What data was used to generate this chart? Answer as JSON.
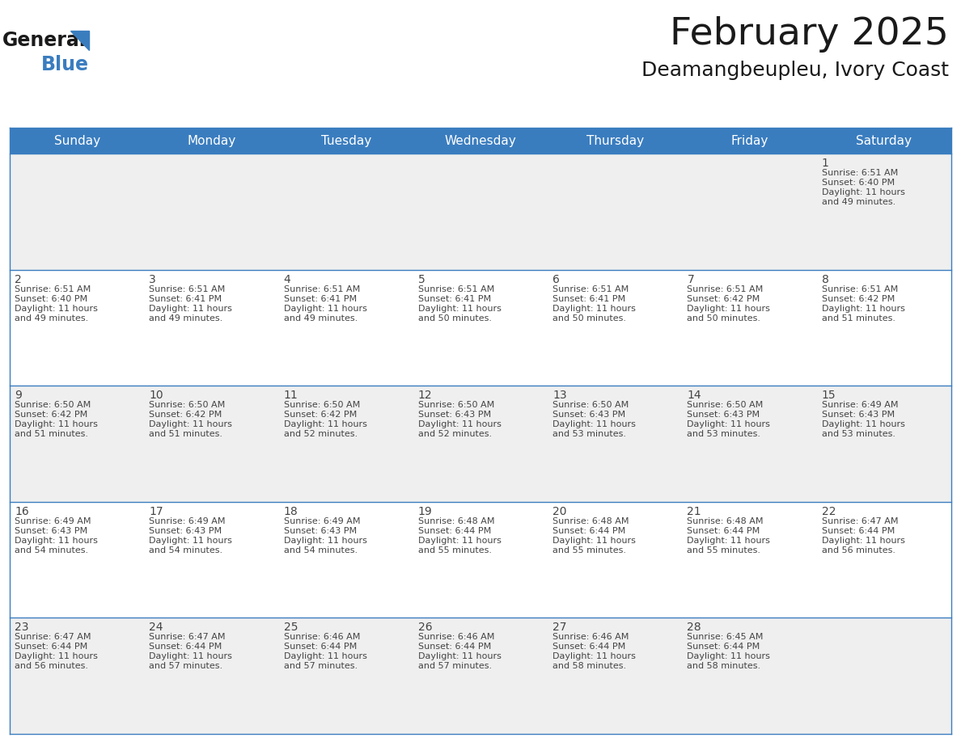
{
  "title": "February 2025",
  "subtitle": "Deamangbeupleu, Ivory Coast",
  "header_color": "#3A7DBF",
  "header_text_color": "#FFFFFF",
  "day_names": [
    "Sunday",
    "Monday",
    "Tuesday",
    "Wednesday",
    "Thursday",
    "Friday",
    "Saturday"
  ],
  "background_color": "#FFFFFF",
  "cell_bg_even": "#EFEFEF",
  "cell_bg_odd": "#FFFFFF",
  "separator_color": "#3A7DBF",
  "text_color": "#444444",
  "days": [
    {
      "day": 1,
      "col": 6,
      "row": 0,
      "sunrise": "6:51 AM",
      "sunset": "6:40 PM",
      "daylight_line1": "Daylight: 11 hours",
      "daylight_line2": "and 49 minutes."
    },
    {
      "day": 2,
      "col": 0,
      "row": 1,
      "sunrise": "6:51 AM",
      "sunset": "6:40 PM",
      "daylight_line1": "Daylight: 11 hours",
      "daylight_line2": "and 49 minutes."
    },
    {
      "day": 3,
      "col": 1,
      "row": 1,
      "sunrise": "6:51 AM",
      "sunset": "6:41 PM",
      "daylight_line1": "Daylight: 11 hours",
      "daylight_line2": "and 49 minutes."
    },
    {
      "day": 4,
      "col": 2,
      "row": 1,
      "sunrise": "6:51 AM",
      "sunset": "6:41 PM",
      "daylight_line1": "Daylight: 11 hours",
      "daylight_line2": "and 49 minutes."
    },
    {
      "day": 5,
      "col": 3,
      "row": 1,
      "sunrise": "6:51 AM",
      "sunset": "6:41 PM",
      "daylight_line1": "Daylight: 11 hours",
      "daylight_line2": "and 50 minutes."
    },
    {
      "day": 6,
      "col": 4,
      "row": 1,
      "sunrise": "6:51 AM",
      "sunset": "6:41 PM",
      "daylight_line1": "Daylight: 11 hours",
      "daylight_line2": "and 50 minutes."
    },
    {
      "day": 7,
      "col": 5,
      "row": 1,
      "sunrise": "6:51 AM",
      "sunset": "6:42 PM",
      "daylight_line1": "Daylight: 11 hours",
      "daylight_line2": "and 50 minutes."
    },
    {
      "day": 8,
      "col": 6,
      "row": 1,
      "sunrise": "6:51 AM",
      "sunset": "6:42 PM",
      "daylight_line1": "Daylight: 11 hours",
      "daylight_line2": "and 51 minutes."
    },
    {
      "day": 9,
      "col": 0,
      "row": 2,
      "sunrise": "6:50 AM",
      "sunset": "6:42 PM",
      "daylight_line1": "Daylight: 11 hours",
      "daylight_line2": "and 51 minutes."
    },
    {
      "day": 10,
      "col": 1,
      "row": 2,
      "sunrise": "6:50 AM",
      "sunset": "6:42 PM",
      "daylight_line1": "Daylight: 11 hours",
      "daylight_line2": "and 51 minutes."
    },
    {
      "day": 11,
      "col": 2,
      "row": 2,
      "sunrise": "6:50 AM",
      "sunset": "6:42 PM",
      "daylight_line1": "Daylight: 11 hours",
      "daylight_line2": "and 52 minutes."
    },
    {
      "day": 12,
      "col": 3,
      "row": 2,
      "sunrise": "6:50 AM",
      "sunset": "6:43 PM",
      "daylight_line1": "Daylight: 11 hours",
      "daylight_line2": "and 52 minutes."
    },
    {
      "day": 13,
      "col": 4,
      "row": 2,
      "sunrise": "6:50 AM",
      "sunset": "6:43 PM",
      "daylight_line1": "Daylight: 11 hours",
      "daylight_line2": "and 53 minutes."
    },
    {
      "day": 14,
      "col": 5,
      "row": 2,
      "sunrise": "6:50 AM",
      "sunset": "6:43 PM",
      "daylight_line1": "Daylight: 11 hours",
      "daylight_line2": "and 53 minutes."
    },
    {
      "day": 15,
      "col": 6,
      "row": 2,
      "sunrise": "6:49 AM",
      "sunset": "6:43 PM",
      "daylight_line1": "Daylight: 11 hours",
      "daylight_line2": "and 53 minutes."
    },
    {
      "day": 16,
      "col": 0,
      "row": 3,
      "sunrise": "6:49 AM",
      "sunset": "6:43 PM",
      "daylight_line1": "Daylight: 11 hours",
      "daylight_line2": "and 54 minutes."
    },
    {
      "day": 17,
      "col": 1,
      "row": 3,
      "sunrise": "6:49 AM",
      "sunset": "6:43 PM",
      "daylight_line1": "Daylight: 11 hours",
      "daylight_line2": "and 54 minutes."
    },
    {
      "day": 18,
      "col": 2,
      "row": 3,
      "sunrise": "6:49 AM",
      "sunset": "6:43 PM",
      "daylight_line1": "Daylight: 11 hours",
      "daylight_line2": "and 54 minutes."
    },
    {
      "day": 19,
      "col": 3,
      "row": 3,
      "sunrise": "6:48 AM",
      "sunset": "6:44 PM",
      "daylight_line1": "Daylight: 11 hours",
      "daylight_line2": "and 55 minutes."
    },
    {
      "day": 20,
      "col": 4,
      "row": 3,
      "sunrise": "6:48 AM",
      "sunset": "6:44 PM",
      "daylight_line1": "Daylight: 11 hours",
      "daylight_line2": "and 55 minutes."
    },
    {
      "day": 21,
      "col": 5,
      "row": 3,
      "sunrise": "6:48 AM",
      "sunset": "6:44 PM",
      "daylight_line1": "Daylight: 11 hours",
      "daylight_line2": "and 55 minutes."
    },
    {
      "day": 22,
      "col": 6,
      "row": 3,
      "sunrise": "6:47 AM",
      "sunset": "6:44 PM",
      "daylight_line1": "Daylight: 11 hours",
      "daylight_line2": "and 56 minutes."
    },
    {
      "day": 23,
      "col": 0,
      "row": 4,
      "sunrise": "6:47 AM",
      "sunset": "6:44 PM",
      "daylight_line1": "Daylight: 11 hours",
      "daylight_line2": "and 56 minutes."
    },
    {
      "day": 24,
      "col": 1,
      "row": 4,
      "sunrise": "6:47 AM",
      "sunset": "6:44 PM",
      "daylight_line1": "Daylight: 11 hours",
      "daylight_line2": "and 57 minutes."
    },
    {
      "day": 25,
      "col": 2,
      "row": 4,
      "sunrise": "6:46 AM",
      "sunset": "6:44 PM",
      "daylight_line1": "Daylight: 11 hours",
      "daylight_line2": "and 57 minutes."
    },
    {
      "day": 26,
      "col": 3,
      "row": 4,
      "sunrise": "6:46 AM",
      "sunset": "6:44 PM",
      "daylight_line1": "Daylight: 11 hours",
      "daylight_line2": "and 57 minutes."
    },
    {
      "day": 27,
      "col": 4,
      "row": 4,
      "sunrise": "6:46 AM",
      "sunset": "6:44 PM",
      "daylight_line1": "Daylight: 11 hours",
      "daylight_line2": "and 58 minutes."
    },
    {
      "day": 28,
      "col": 5,
      "row": 4,
      "sunrise": "6:45 AM",
      "sunset": "6:44 PM",
      "daylight_line1": "Daylight: 11 hours",
      "daylight_line2": "and 58 minutes."
    }
  ],
  "logo_general_color": "#1A1A1A",
  "logo_blue_color": "#3A7DBF",
  "header_font_size": 11,
  "day_number_font_size": 10,
  "info_font_size": 8,
  "title_font_size": 34,
  "subtitle_font_size": 18
}
